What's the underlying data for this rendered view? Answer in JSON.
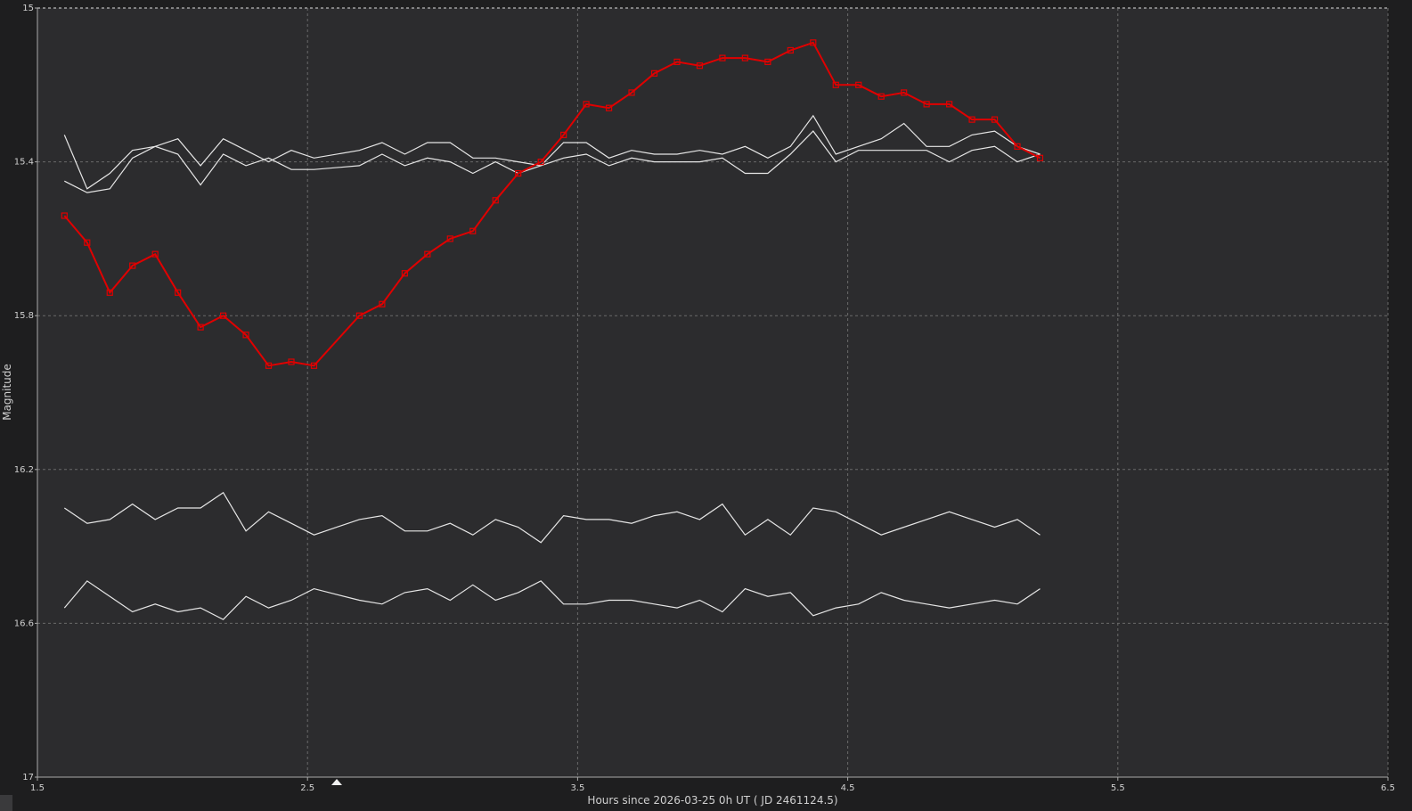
{
  "chart_data": {
    "type": "line",
    "y_label": "Magnitude",
    "x_label": "Hours since 2026-03-25 0h UT ( JD 2461124.5)",
    "xlim": [
      1.5,
      6.5
    ],
    "xticks": [
      1.5,
      2.5,
      3.5,
      4.5,
      5.5,
      6.5
    ],
    "ylim": [
      15,
      17
    ],
    "yticks": [
      15,
      15.4,
      15.8,
      16.2,
      16.6,
      17
    ],
    "y_reversed": true,
    "grid": true,
    "x": [
      1.6,
      1.684,
      1.768,
      1.852,
      1.936,
      2.02,
      2.104,
      2.188,
      2.272,
      2.356,
      2.44,
      2.524,
      2.692,
      2.776,
      2.86,
      2.944,
      3.028,
      3.112,
      3.196,
      3.28,
      3.364,
      3.448,
      3.532,
      3.616,
      3.7,
      3.784,
      3.868,
      3.952,
      4.036,
      4.12,
      4.204,
      4.288,
      4.372,
      4.456,
      4.54,
      4.624,
      4.708,
      4.792,
      4.876,
      4.96,
      5.044,
      5.128,
      5.212
    ],
    "series": [
      {
        "color": "#e6e6e6",
        "marker": false,
        "values": [
          15.33,
          15.47,
          15.43,
          15.37,
          15.36,
          15.34,
          15.41,
          15.34,
          15.37,
          15.4,
          15.37,
          15.39,
          15.37,
          15.35,
          15.38,
          15.35,
          15.35,
          15.39,
          15.39,
          15.4,
          15.41,
          15.35,
          15.35,
          15.39,
          15.37,
          15.38,
          15.38,
          15.37,
          15.38,
          15.36,
          15.39,
          15.36,
          15.28,
          15.38,
          15.36,
          15.34,
          15.3,
          15.36,
          15.36,
          15.33,
          15.32,
          15.36,
          15.38
        ]
      },
      {
        "color": "#e6e6e6",
        "marker": false,
        "values": [
          15.45,
          15.48,
          15.47,
          15.39,
          15.36,
          15.38,
          15.46,
          15.38,
          15.41,
          15.39,
          15.42,
          15.42,
          15.41,
          15.38,
          15.41,
          15.39,
          15.4,
          15.43,
          15.4,
          15.43,
          15.41,
          15.39,
          15.38,
          15.41,
          15.39,
          15.4,
          15.4,
          15.4,
          15.39,
          15.43,
          15.43,
          15.38,
          15.32,
          15.4,
          15.37,
          15.37,
          15.37,
          15.37,
          15.4,
          15.37,
          15.36,
          15.4,
          15.38
        ]
      },
      {
        "color": "#e6e6e6",
        "marker": false,
        "values": [
          16.3,
          16.34,
          16.33,
          16.29,
          16.33,
          16.3,
          16.3,
          16.26,
          16.36,
          16.31,
          16.34,
          16.37,
          16.33,
          16.32,
          16.36,
          16.36,
          16.34,
          16.37,
          16.33,
          16.35,
          16.39,
          16.32,
          16.33,
          16.33,
          16.34,
          16.32,
          16.31,
          16.33,
          16.29,
          16.37,
          16.33,
          16.37,
          16.3,
          16.31,
          16.34,
          16.37,
          16.35,
          16.33,
          16.31,
          16.33,
          16.35,
          16.33,
          16.37
        ]
      },
      {
        "color": "#e6e6e6",
        "marker": false,
        "values": [
          16.56,
          16.49,
          16.53,
          16.57,
          16.55,
          16.57,
          16.56,
          16.59,
          16.53,
          16.56,
          16.54,
          16.51,
          16.54,
          16.55,
          16.52,
          16.51,
          16.54,
          16.5,
          16.54,
          16.52,
          16.49,
          16.55,
          16.55,
          16.54,
          16.54,
          16.55,
          16.56,
          16.54,
          16.57,
          16.51,
          16.53,
          16.52,
          16.58,
          16.56,
          16.55,
          16.52,
          16.54,
          16.55,
          16.56,
          16.55,
          16.54,
          16.55,
          16.51
        ]
      },
      {
        "color": "#e00000",
        "marker": true,
        "values": [
          15.54,
          15.61,
          15.74,
          15.67,
          15.64,
          15.74,
          15.83,
          15.8,
          15.85,
          15.93,
          15.92,
          15.93,
          15.8,
          15.77,
          15.69,
          15.64,
          15.6,
          15.58,
          15.5,
          15.43,
          15.4,
          15.33,
          15.25,
          15.26,
          15.22,
          15.17,
          15.14,
          15.15,
          15.13,
          15.13,
          15.14,
          15.11,
          15.09,
          15.2,
          15.2,
          15.23,
          15.22,
          15.25,
          15.25,
          15.29,
          15.29,
          15.36,
          15.39
        ]
      }
    ]
  }
}
